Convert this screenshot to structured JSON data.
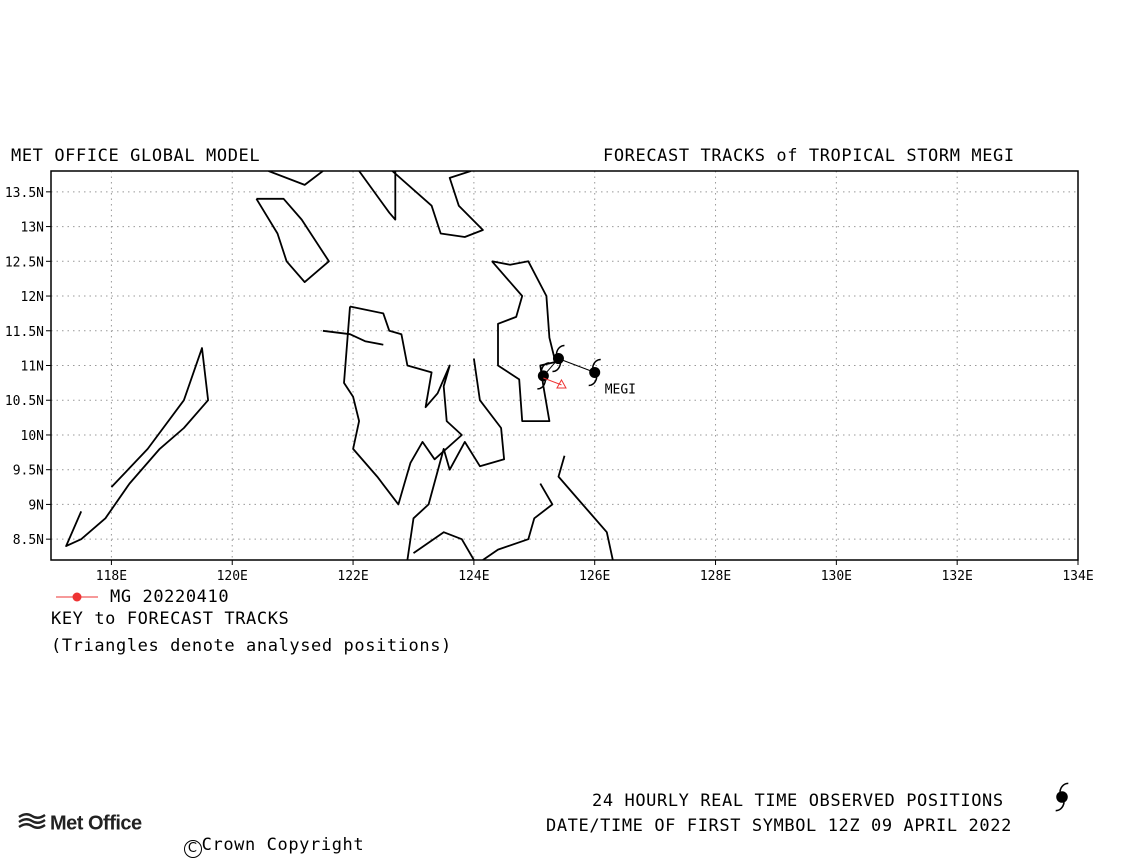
{
  "header": {
    "model_title": "MET OFFICE GLOBAL MODEL",
    "chart_title": "FORECAST TRACKS of TROPICAL STORM MEGI"
  },
  "chart_data": {
    "type": "scatter",
    "title": "FORECAST TRACKS of TROPICAL STORM MEGI",
    "xlim": [
      117,
      134
    ],
    "ylim": [
      8.2,
      13.8
    ],
    "x_ticks": [
      118,
      120,
      122,
      124,
      126,
      128,
      130,
      132,
      134
    ],
    "x_tick_labels": [
      "118E",
      "120E",
      "122E",
      "124E",
      "126E",
      "128E",
      "130E",
      "132E",
      "134E"
    ],
    "y_ticks": [
      8.5,
      9,
      9.5,
      10,
      10.5,
      11,
      11.5,
      12,
      12.5,
      13,
      13.5
    ],
    "y_tick_labels": [
      "8.5N",
      "9N",
      "9.5N",
      "10N",
      "10.5N",
      "11N",
      "11.5N",
      "12N",
      "12.5N",
      "13N",
      "13.5N"
    ],
    "grid": true,
    "storm_label": "MEGI",
    "observed_track": {
      "name": "observed",
      "color": "#000000",
      "points": [
        [
          126.0,
          10.9
        ],
        [
          125.4,
          11.1
        ],
        [
          125.15,
          10.85
        ]
      ]
    },
    "forecast_series": [
      {
        "name": "MG 20220410",
        "color": "#ee3333",
        "points": [
          [
            125.45,
            10.72
          ],
          [
            125.15,
            10.82
          ]
        ]
      }
    ],
    "analysed_positions": [
      [
        125.45,
        10.72
      ]
    ],
    "coastlines": [
      [
        [
          120.6,
          13.8
        ],
        [
          121.2,
          13.6
        ],
        [
          121.5,
          13.8
        ]
      ],
      [
        [
          122.1,
          13.8
        ],
        [
          122.6,
          13.2
        ],
        [
          122.7,
          13.1
        ],
        [
          122.7,
          13.8
        ]
      ],
      [
        [
          122.65,
          13.8
        ],
        [
          123.3,
          13.3
        ],
        [
          123.45,
          12.9
        ],
        [
          123.85,
          12.85
        ],
        [
          124.15,
          12.95
        ],
        [
          123.75,
          13.3
        ],
        [
          123.6,
          13.7
        ],
        [
          123.95,
          13.8
        ]
      ],
      [
        [
          120.4,
          13.4
        ],
        [
          120.85,
          13.4
        ],
        [
          121.15,
          13.1
        ],
        [
          121.6,
          12.5
        ],
        [
          121.2,
          12.2
        ],
        [
          120.9,
          12.5
        ],
        [
          120.75,
          12.9
        ],
        [
          120.4,
          13.4
        ]
      ],
      [
        [
          124.3,
          12.5
        ],
        [
          124.6,
          12.45
        ],
        [
          124.9,
          12.5
        ],
        [
          125.2,
          12.0
        ],
        [
          125.25,
          11.4
        ],
        [
          125.35,
          11.05
        ],
        [
          125.1,
          11.0
        ],
        [
          125.15,
          10.7
        ],
        [
          125.25,
          10.2
        ],
        [
          124.8,
          10.2
        ],
        [
          124.75,
          10.8
        ],
        [
          124.4,
          11.0
        ],
        [
          124.4,
          11.6
        ],
        [
          124.7,
          11.7
        ],
        [
          124.8,
          12.0
        ],
        [
          124.3,
          12.5
        ]
      ],
      [
        [
          121.95,
          11.85
        ],
        [
          122.5,
          11.75
        ],
        [
          122.6,
          11.5
        ],
        [
          122.8,
          11.45
        ],
        [
          122.9,
          11.0
        ],
        [
          123.3,
          10.9
        ],
        [
          123.2,
          10.4
        ],
        [
          123.4,
          10.6
        ],
        [
          123.6,
          11.0
        ],
        [
          123.5,
          10.7
        ],
        [
          123.55,
          10.2
        ],
        [
          123.8,
          10.0
        ],
        [
          123.35,
          9.65
        ],
        [
          123.15,
          9.9
        ],
        [
          122.95,
          9.6
        ],
        [
          122.85,
          9.3
        ],
        [
          122.75,
          9.0
        ],
        [
          122.4,
          9.4
        ],
        [
          122.0,
          9.8
        ],
        [
          122.1,
          10.2
        ],
        [
          122.0,
          10.55
        ],
        [
          121.85,
          10.75
        ],
        [
          121.95,
          11.85
        ]
      ],
      [
        [
          121.5,
          11.5
        ],
        [
          121.95,
          11.45
        ],
        [
          122.2,
          11.35
        ],
        [
          122.5,
          11.3
        ]
      ],
      [
        [
          124.0,
          11.1
        ],
        [
          124.1,
          10.5
        ],
        [
          124.45,
          10.1
        ],
        [
          124.5,
          9.65
        ],
        [
          124.1,
          9.55
        ],
        [
          123.85,
          9.9
        ],
        [
          123.6,
          9.5
        ],
        [
          123.5,
          9.8
        ],
        [
          123.25,
          9.0
        ],
        [
          123.0,
          8.8
        ],
        [
          122.9,
          8.2
        ]
      ],
      [
        [
          125.5,
          9.7
        ],
        [
          125.4,
          9.4
        ],
        [
          125.7,
          9.1
        ],
        [
          125.9,
          8.9
        ],
        [
          126.2,
          8.6
        ],
        [
          126.3,
          8.2
        ]
      ],
      [
        [
          125.1,
          9.3
        ],
        [
          125.3,
          9.0
        ],
        [
          125.0,
          8.8
        ],
        [
          124.9,
          8.5
        ],
        [
          124.4,
          8.35
        ],
        [
          124.15,
          8.2
        ]
      ],
      [
        [
          124.0,
          8.2
        ],
        [
          123.8,
          8.5
        ],
        [
          123.5,
          8.6
        ],
        [
          123.0,
          8.3
        ]
      ],
      [
        [
          118.0,
          9.25
        ],
        [
          118.6,
          9.8
        ],
        [
          119.2,
          10.5
        ],
        [
          119.5,
          11.25
        ],
        [
          119.6,
          10.5
        ],
        [
          119.2,
          10.1
        ],
        [
          118.8,
          9.8
        ],
        [
          118.3,
          9.3
        ],
        [
          117.9,
          8.8
        ],
        [
          117.5,
          8.5
        ],
        [
          117.25,
          8.4
        ],
        [
          117.5,
          8.9
        ]
      ]
    ]
  },
  "key": {
    "series_label": "MG 20220410",
    "heading": "KEY to FORECAST TRACKS",
    "note": "(Triangles denote analysed positions)"
  },
  "footer": {
    "observed_label": "24 HOURLY REAL TIME OBSERVED POSITIONS",
    "first_symbol_label": "DATE/TIME OF FIRST SYMBOL 12Z 09 APRIL 2022",
    "logo_text": "Met Office",
    "copyright": "Crown Copyright"
  }
}
